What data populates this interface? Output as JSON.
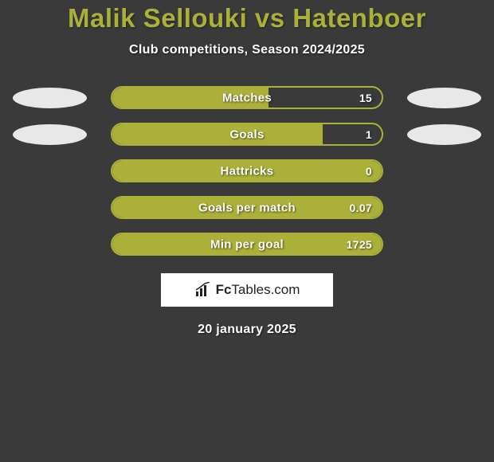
{
  "title": "Malik Sellouki vs Hatenboer",
  "subtitle": "Club competitions, Season 2024/2025",
  "date": "20 january 2025",
  "colors": {
    "accent": "#aab038",
    "background": "#3a3a3a",
    "text": "#ffffff",
    "ellipse_left": "#e8e8e8",
    "ellipse_right": "#e8e8e8",
    "logo_bg": "#ffffff",
    "logo_text": "#222222"
  },
  "logo": {
    "prefix": "Fc",
    "suffix": "Tables.com"
  },
  "stats": [
    {
      "label": "Matches",
      "value": "15",
      "fill_pct": 58,
      "left_ellipse": true,
      "right_ellipse": true
    },
    {
      "label": "Goals",
      "value": "1",
      "fill_pct": 78,
      "left_ellipse": true,
      "right_ellipse": true
    },
    {
      "label": "Hattricks",
      "value": "0",
      "fill_pct": 100,
      "left_ellipse": false,
      "right_ellipse": false
    },
    {
      "label": "Goals per match",
      "value": "0.07",
      "fill_pct": 100,
      "left_ellipse": false,
      "right_ellipse": false
    },
    {
      "label": "Min per goal",
      "value": "1725",
      "fill_pct": 100,
      "left_ellipse": false,
      "right_ellipse": false
    }
  ]
}
